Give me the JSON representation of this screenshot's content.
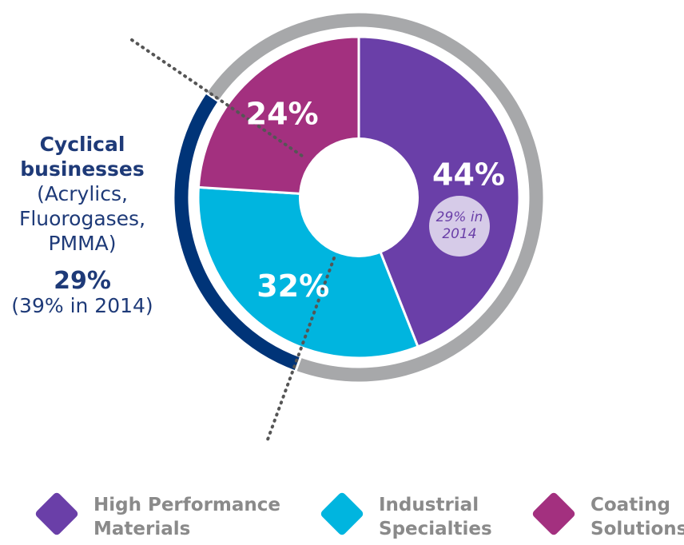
{
  "chart_data": {
    "type": "donut",
    "series": [
      {
        "name": "High Performance Materials",
        "color": "#6a3fa8",
        "value": 44,
        "value_label": "44%"
      },
      {
        "name": "Industrial Specialties",
        "color": "#00b5df",
        "value": 32,
        "value_label": "32%"
      },
      {
        "name": "Coating Solutions",
        "color": "#a3307f",
        "value": 24,
        "value_label": "24%"
      }
    ],
    "annotation": "29% in 2014",
    "ring": {
      "name": "Cyclical businesses",
      "detail": "(Acrylics, Fluorogases, PMMA)",
      "value": 29,
      "value_label": "29%",
      "note": "(39% in 2014)",
      "color": "#003478",
      "rest_color": "#a7a8aa"
    }
  }
}
